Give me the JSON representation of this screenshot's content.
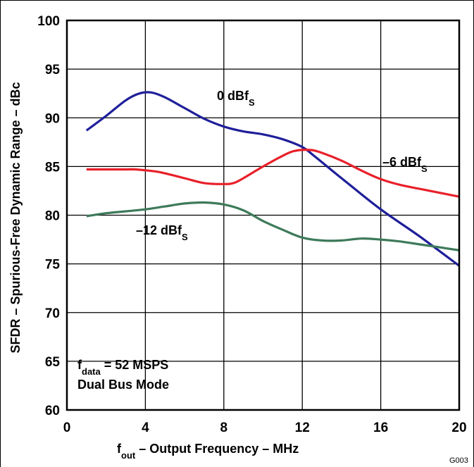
{
  "chart_data": {
    "type": "line",
    "title": "",
    "xlabel": {
      "f": "f",
      "sub": "out",
      "rest": " – Output Frequency – MHz"
    },
    "ylabel": "SFDR – Spurious-Free Dynamic Range – dBc",
    "xlim": [
      0,
      20
    ],
    "ylim": [
      60,
      100
    ],
    "x_ticks": [
      0,
      4,
      8,
      12,
      16,
      20
    ],
    "y_ticks": [
      60,
      65,
      70,
      75,
      80,
      85,
      90,
      95,
      100
    ],
    "grid": true,
    "figure_id": "G003",
    "series": [
      {
        "name": "0 dBfS",
        "label": {
          "main": "0 dBf",
          "sub": "S"
        },
        "color": "#1f1f9a",
        "x": [
          1,
          2,
          3,
          3.7,
          4.3,
          5,
          6,
          7,
          8,
          9,
          10,
          11,
          12,
          12.6,
          14,
          16,
          18,
          20
        ],
        "y": [
          88.7,
          90.2,
          91.8,
          92.5,
          92.6,
          92.1,
          91.0,
          89.9,
          89.1,
          88.6,
          88.3,
          87.8,
          87.0,
          86.1,
          83.8,
          80.6,
          77.8,
          74.8
        ]
      },
      {
        "name": "−6 dBfS",
        "label": {
          "main": "–6 dBf",
          "sub": "S"
        },
        "color": "#e8202a",
        "x": [
          1,
          2,
          3,
          3.5,
          4.5,
          5,
          6,
          7,
          8,
          8.5,
          9,
          10,
          11,
          11.6,
          12.4,
          13,
          14,
          15,
          16,
          17,
          18,
          19,
          20
        ],
        "y": [
          84.7,
          84.7,
          84.7,
          84.7,
          84.5,
          84.3,
          83.8,
          83.3,
          83.2,
          83.3,
          83.8,
          85.0,
          86.1,
          86.6,
          86.7,
          86.4,
          85.6,
          84.6,
          83.7,
          83.1,
          82.7,
          82.3,
          81.9
        ]
      },
      {
        "name": "−12 dBfS",
        "label": {
          "main": "–12 dBf",
          "sub": "S"
        },
        "color": "#3d7a5a",
        "x": [
          1,
          2,
          3,
          4,
          5,
          6,
          7,
          8,
          9,
          10,
          11,
          12,
          13,
          14,
          15,
          16,
          17,
          18,
          19,
          20
        ],
        "y": [
          79.9,
          80.2,
          80.4,
          80.6,
          80.9,
          81.2,
          81.3,
          81.1,
          80.5,
          79.4,
          78.5,
          77.7,
          77.4,
          77.4,
          77.6,
          77.5,
          77.3,
          77.0,
          76.7,
          76.4
        ]
      }
    ],
    "conditions": [
      {
        "f": "f",
        "sub": "data",
        "rest": " = 52 MSPS"
      },
      "Dual Bus Mode"
    ]
  }
}
